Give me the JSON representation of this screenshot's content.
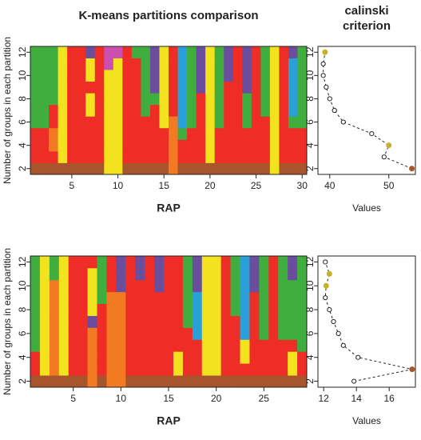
{
  "chart_data": [
    {
      "type": "heatmap",
      "title": "K-means partitions comparison",
      "xlabel": "RAP",
      "ylabel": "Number of groups in each partition",
      "x": [
        1,
        2,
        3,
        4,
        5,
        6,
        7,
        8,
        9,
        10,
        11,
        12,
        13,
        14,
        15,
        16,
        17,
        18,
        19,
        20,
        21,
        22,
        23,
        24,
        25,
        26,
        27,
        28,
        29,
        30
      ],
      "y": [
        2,
        3,
        4,
        5,
        6,
        7,
        8,
        9,
        10,
        11,
        12
      ],
      "xlim": [
        0.5,
        30.5
      ],
      "ylim": [
        1.5,
        12.5
      ],
      "xticks": [
        5,
        10,
        15,
        20,
        25,
        30
      ],
      "yticks": [
        2,
        4,
        6,
        8,
        10,
        12
      ],
      "colors": [
        "#ee2e26",
        "#f27a20",
        "#f2e31e",
        "#3fae3f",
        "#a8552c",
        "#6a4d9c",
        "#2aa0d8",
        "#cc4fb0"
      ],
      "values": [
        [
          4,
          0,
          0,
          0,
          3,
          3,
          3,
          3,
          3,
          3,
          3
        ],
        [
          4,
          0,
          0,
          0,
          3,
          3,
          3,
          3,
          3,
          3,
          3
        ],
        [
          4,
          0,
          1,
          1,
          0,
          0,
          3,
          3,
          3,
          3,
          3
        ],
        [
          4,
          2,
          2,
          2,
          2,
          2,
          2,
          2,
          2,
          2,
          2
        ],
        [
          4,
          0,
          0,
          0,
          0,
          0,
          0,
          0,
          0,
          0,
          0
        ],
        [
          4,
          0,
          0,
          0,
          0,
          0,
          0,
          0,
          0,
          0,
          0
        ],
        [
          4,
          0,
          0,
          0,
          0,
          2,
          2,
          0,
          2,
          2,
          5
        ],
        [
          4,
          0,
          0,
          0,
          0,
          0,
          0,
          0,
          0,
          0,
          0
        ],
        [
          2,
          2,
          2,
          2,
          2,
          2,
          2,
          2,
          2,
          7,
          7
        ],
        [
          2,
          2,
          2,
          2,
          2,
          2,
          2,
          2,
          2,
          2,
          7
        ],
        [
          4,
          0,
          0,
          0,
          0,
          0,
          0,
          0,
          0,
          0,
          0
        ],
        [
          4,
          0,
          0,
          0,
          0,
          0,
          0,
          0,
          0,
          0,
          3
        ],
        [
          4,
          0,
          0,
          0,
          0,
          3,
          3,
          3,
          3,
          3,
          3
        ],
        [
          4,
          0,
          0,
          0,
          0,
          0,
          3,
          5,
          5,
          5,
          5
        ],
        [
          4,
          0,
          0,
          0,
          2,
          2,
          2,
          2,
          2,
          2,
          2
        ],
        [
          1,
          1,
          1,
          1,
          1,
          0,
          0,
          0,
          0,
          0,
          0
        ],
        [
          4,
          0,
          0,
          3,
          6,
          6,
          6,
          6,
          6,
          6,
          6
        ],
        [
          4,
          0,
          0,
          0,
          3,
          3,
          3,
          3,
          3,
          3,
          3
        ],
        [
          4,
          0,
          0,
          0,
          0,
          0,
          0,
          5,
          5,
          5,
          5
        ],
        [
          4,
          2,
          2,
          2,
          2,
          2,
          2,
          2,
          2,
          2,
          2
        ],
        [
          4,
          0,
          0,
          0,
          3,
          3,
          3,
          3,
          3,
          3,
          3
        ],
        [
          4,
          0,
          0,
          0,
          0,
          0,
          0,
          0,
          5,
          5,
          5
        ],
        [
          4,
          0,
          0,
          0,
          0,
          0,
          0,
          0,
          0,
          0,
          0
        ],
        [
          4,
          0,
          0,
          0,
          3,
          3,
          3,
          5,
          5,
          5,
          5
        ],
        [
          4,
          0,
          0,
          0,
          0,
          0,
          0,
          0,
          0,
          0,
          0
        ],
        [
          4,
          0,
          0,
          0,
          0,
          3,
          3,
          3,
          3,
          3,
          3
        ],
        [
          2,
          2,
          2,
          2,
          2,
          2,
          2,
          2,
          2,
          2,
          2
        ],
        [
          4,
          0,
          0,
          0,
          0,
          0,
          0,
          0,
          0,
          0,
          0
        ],
        [
          4,
          0,
          0,
          0,
          3,
          6,
          6,
          6,
          6,
          6,
          5
        ],
        [
          4,
          0,
          0,
          0,
          3,
          3,
          3,
          3,
          3,
          3,
          3
        ]
      ]
    },
    {
      "type": "line",
      "title": "calinski criterion",
      "xlabel": "Values",
      "x": [
        53.9,
        49.2,
        50.0,
        47.1,
        42.3,
        40.8,
        40.0,
        39.4,
        38.9,
        38.9,
        39.2
      ],
      "y": [
        2,
        3,
        4,
        5,
        6,
        7,
        8,
        9,
        10,
        11,
        12
      ],
      "point_colors": [
        "#a8552c",
        "none",
        "#c8b02a",
        "none",
        "none",
        "none",
        "none",
        "none",
        "none",
        "none",
        "#c8b02a"
      ],
      "xlim": [
        38,
        54.5
      ],
      "ylim": [
        1.5,
        12.5
      ],
      "xticks": [
        40,
        50
      ],
      "yticks": [
        2,
        4,
        6,
        8,
        10,
        12
      ]
    },
    {
      "type": "heatmap",
      "xlabel": "RAP",
      "ylabel": "Number of groups in each partition",
      "x": [
        1,
        2,
        3,
        4,
        5,
        6,
        7,
        8,
        9,
        10,
        11,
        12,
        13,
        14,
        15,
        16,
        17,
        18,
        19,
        20,
        21,
        22,
        23,
        24,
        25,
        26,
        27,
        28,
        29
      ],
      "y": [
        2,
        3,
        4,
        5,
        6,
        7,
        8,
        9,
        10,
        11,
        12
      ],
      "xlim": [
        0.5,
        29.5
      ],
      "ylim": [
        1.5,
        12.5
      ],
      "xticks": [
        5,
        10,
        15,
        20,
        25
      ],
      "yticks": [
        2,
        4,
        6,
        8,
        10,
        12
      ],
      "colors": [
        "#ee2e26",
        "#f27a20",
        "#f2e31e",
        "#3fae3f",
        "#a8552c",
        "#6a4d9c",
        "#2aa0d8",
        "#cc4fb0"
      ],
      "values": [
        [
          4,
          0,
          0,
          3,
          3,
          3,
          3,
          3,
          3,
          3,
          3
        ],
        [
          4,
          2,
          2,
          2,
          2,
          2,
          2,
          2,
          2,
          2,
          2
        ],
        [
          4,
          1,
          1,
          1,
          1,
          1,
          1,
          1,
          1,
          3,
          3
        ],
        [
          4,
          2,
          2,
          2,
          2,
          2,
          2,
          2,
          2,
          2,
          2
        ],
        [
          4,
          0,
          0,
          0,
          0,
          0,
          0,
          0,
          0,
          0,
          0
        ],
        [
          4,
          0,
          0,
          0,
          0,
          0,
          0,
          0,
          0,
          0,
          0
        ],
        [
          1,
          1,
          1,
          1,
          1,
          5,
          2,
          2,
          2,
          2,
          0
        ],
        [
          4,
          0,
          0,
          0,
          0,
          0,
          0,
          3,
          3,
          3,
          3
        ],
        [
          1,
          1,
          1,
          1,
          1,
          1,
          1,
          1,
          0,
          0,
          0
        ],
        [
          1,
          1,
          1,
          1,
          1,
          1,
          1,
          1,
          5,
          5,
          5
        ],
        [
          4,
          0,
          0,
          0,
          0,
          0,
          0,
          0,
          0,
          0,
          0
        ],
        [
          4,
          0,
          0,
          0,
          0,
          0,
          0,
          0,
          0,
          5,
          5
        ],
        [
          4,
          0,
          0,
          0,
          0,
          0,
          0,
          0,
          0,
          0,
          0
        ],
        [
          4,
          0,
          0,
          0,
          0,
          0,
          0,
          0,
          5,
          5,
          5
        ],
        [
          4,
          0,
          0,
          0,
          0,
          0,
          0,
          0,
          0,
          0,
          0
        ],
        [
          4,
          2,
          2,
          0,
          0,
          0,
          0,
          0,
          0,
          0,
          0
        ],
        [
          4,
          0,
          0,
          0,
          0,
          3,
          3,
          3,
          3,
          3,
          3
        ],
        [
          4,
          0,
          0,
          0,
          6,
          6,
          6,
          6,
          5,
          5,
          5
        ],
        [
          4,
          2,
          2,
          2,
          2,
          2,
          2,
          2,
          2,
          2,
          2
        ],
        [
          4,
          2,
          2,
          2,
          2,
          2,
          2,
          2,
          2,
          2,
          2
        ],
        [
          4,
          0,
          0,
          0,
          0,
          0,
          0,
          0,
          0,
          0,
          0
        ],
        [
          4,
          0,
          0,
          0,
          0,
          0,
          3,
          3,
          3,
          3,
          3
        ],
        [
          4,
          0,
          2,
          2,
          6,
          6,
          6,
          6,
          6,
          6,
          6
        ],
        [
          4,
          0,
          0,
          0,
          0,
          0,
          0,
          0,
          5,
          5,
          5
        ],
        [
          4,
          0,
          0,
          0,
          3,
          3,
          3,
          3,
          3,
          3,
          3
        ],
        [
          4,
          0,
          0,
          0,
          0,
          0,
          0,
          0,
          0,
          0,
          0
        ],
        [
          4,
          0,
          0,
          0,
          3,
          3,
          3,
          3,
          3,
          3,
          3
        ],
        [
          4,
          2,
          2,
          0,
          3,
          3,
          3,
          3,
          3,
          5,
          5
        ],
        [
          4,
          0,
          0,
          3,
          3,
          3,
          3,
          3,
          3,
          3,
          3
        ]
      ]
    },
    {
      "type": "line",
      "xlabel": "Values",
      "x": [
        13.85,
        17.4,
        14.1,
        13.2,
        12.9,
        12.6,
        12.35,
        12.1,
        12.15,
        12.35,
        12.1
      ],
      "y": [
        2,
        3,
        4,
        5,
        6,
        7,
        8,
        9,
        10,
        11,
        12
      ],
      "point_colors": [
        "none",
        "#a8552c",
        "none",
        "none",
        "none",
        "none",
        "none",
        "none",
        "#c8b02a",
        "#c8b02a",
        "none"
      ],
      "xlim": [
        11.65,
        17.6
      ],
      "ylim": [
        1.5,
        12.5
      ],
      "xticks": [
        12,
        14,
        16
      ],
      "yticks": [
        2,
        4,
        6,
        8,
        10,
        12
      ]
    }
  ]
}
